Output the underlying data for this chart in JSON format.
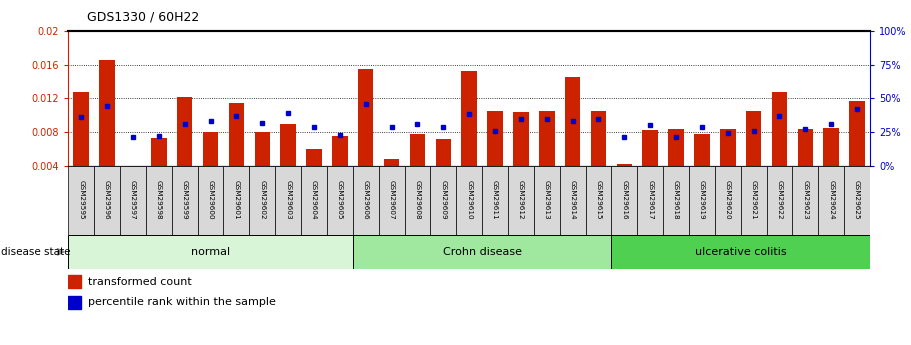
{
  "title": "GDS1330 / 60H22",
  "samples": [
    "GSM29595",
    "GSM29596",
    "GSM29597",
    "GSM29598",
    "GSM29599",
    "GSM29600",
    "GSM29601",
    "GSM29602",
    "GSM29603",
    "GSM29604",
    "GSM29605",
    "GSM29606",
    "GSM29607",
    "GSM29608",
    "GSM29609",
    "GSM29610",
    "GSM29611",
    "GSM29612",
    "GSM29613",
    "GSM29614",
    "GSM29615",
    "GSM29616",
    "GSM29617",
    "GSM29618",
    "GSM29619",
    "GSM29620",
    "GSM29621",
    "GSM29622",
    "GSM29623",
    "GSM29624",
    "GSM29625"
  ],
  "transformed_count": [
    0.0128,
    0.0165,
    0.003,
    0.0073,
    0.0122,
    0.008,
    0.0115,
    0.008,
    0.009,
    0.006,
    0.0075,
    0.0155,
    0.0048,
    0.0077,
    0.0072,
    0.0153,
    0.0105,
    0.0104,
    0.0105,
    0.0145,
    0.0105,
    0.0042,
    0.0082,
    0.0083,
    0.0077,
    0.0083,
    0.0105,
    0.0127,
    0.0083,
    0.0085,
    0.0117
  ],
  "percentile_rank": [
    36,
    44,
    21,
    22,
    31,
    33,
    37,
    32,
    39,
    29,
    23,
    46,
    29,
    31,
    29,
    38,
    26,
    35,
    35,
    33,
    35,
    21,
    30,
    21,
    29,
    24,
    26,
    37,
    27,
    31,
    42
  ],
  "groups": [
    {
      "label": "normal",
      "start": 0,
      "end": 11,
      "color": "#d8f5d8"
    },
    {
      "label": "Crohn disease",
      "start": 11,
      "end": 21,
      "color": "#a0e8a0"
    },
    {
      "label": "ulcerative colitis",
      "start": 21,
      "end": 31,
      "color": "#50d050"
    }
  ],
  "bar_color": "#cc2200",
  "dot_color": "#0000cc",
  "ylim_left": [
    0.004,
    0.02
  ],
  "ylim_right": [
    0,
    100
  ],
  "yticks_left": [
    0.004,
    0.008,
    0.012,
    0.016,
    0.02
  ],
  "yticks_right": [
    0,
    25,
    50,
    75,
    100
  ],
  "background_color": "#ffffff",
  "disease_state_label": "disease state"
}
